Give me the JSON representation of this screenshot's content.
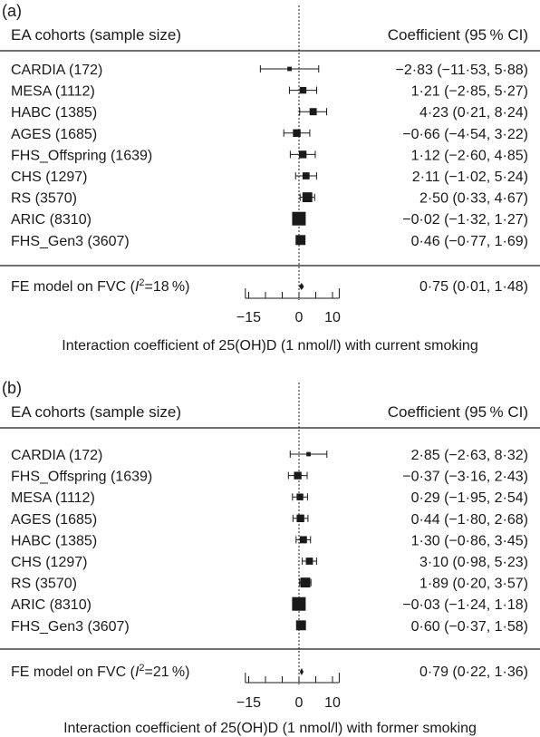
{
  "chart_data": [
    {
      "type": "forest",
      "panel": "(a)",
      "header_left": "EA cohorts (sample size)",
      "header_right": "Coefficient (95 % CI)",
      "rows": [
        {
          "label": "CARDIA (172)",
          "est": -2.83,
          "lo": -11.53,
          "hi": 5.88,
          "ci_text": "−2·83 (−11·53, 5·88)",
          "weight": 172
        },
        {
          "label": "MESA (1112)",
          "est": 1.21,
          "lo": -2.85,
          "hi": 5.27,
          "ci_text": "1·21 (−2·85, 5·27)",
          "weight": 1112
        },
        {
          "label": "HABC (1385)",
          "est": 4.23,
          "lo": 0.21,
          "hi": 8.24,
          "ci_text": "4·23 (0·21, 8·24)",
          "weight": 1385
        },
        {
          "label": "AGES (1685)",
          "est": -0.66,
          "lo": -4.54,
          "hi": 3.22,
          "ci_text": "−0·66 (−4·54, 3·22)",
          "weight": 1685
        },
        {
          "label": "FHS_Offspring (1639)",
          "est": 1.12,
          "lo": -2.6,
          "hi": 4.85,
          "ci_text": "1·12 (−2·60, 4·85)",
          "weight": 1639
        },
        {
          "label": "CHS (1297)",
          "est": 2.11,
          "lo": -1.02,
          "hi": 5.24,
          "ci_text": "2·11 (−1·02, 5·24)",
          "weight": 1297
        },
        {
          "label": "RS (3570)",
          "est": 2.5,
          "lo": 0.33,
          "hi": 4.67,
          "ci_text": "2·50 (0·33, 4·67)",
          "weight": 3570
        },
        {
          "label": "ARIC (8310)",
          "est": -0.02,
          "lo": -1.32,
          "hi": 1.27,
          "ci_text": "−0·02 (−1·32, 1·27)",
          "weight": 8310
        },
        {
          "label": "FHS_Gen3 (3607)",
          "est": 0.46,
          "lo": -0.77,
          "hi": 1.69,
          "ci_text": "0·46 (−0·77, 1·69)",
          "weight": 3607
        }
      ],
      "summary": {
        "label_prefix": "FE model on FVC (",
        "i2_symbol": "I",
        "i2_sup": "2",
        "i2_text": "=18 %)",
        "est": 0.75,
        "lo": 0.01,
        "hi": 1.48,
        "ci_text": "0·75 (0·01, 1·48)"
      },
      "x_ticks": [
        -15,
        0,
        10
      ],
      "x_tick_labels": [
        "−15",
        "0",
        "10"
      ],
      "xlim": [
        -16,
        12
      ],
      "xlabel": "Interaction coefficient of 25(OH)D  (1 nmol/l) with current smoking"
    },
    {
      "type": "forest",
      "panel": "(b)",
      "header_left": "EA cohorts (sample size)",
      "header_right": "Coefficient (95 % CI)",
      "rows": [
        {
          "label": "CARDIA (172)",
          "est": 2.85,
          "lo": -2.63,
          "hi": 8.32,
          "ci_text": "2·85 (−2·63, 8·32)",
          "weight": 172
        },
        {
          "label": "FHS_Offspring (1639)",
          "est": -0.37,
          "lo": -3.16,
          "hi": 2.43,
          "ci_text": "−0·37 (−3·16, 2·43)",
          "weight": 1639
        },
        {
          "label": "MESA (1112)",
          "est": 0.29,
          "lo": -1.95,
          "hi": 2.54,
          "ci_text": "0·29 (−1·95, 2·54)",
          "weight": 1112
        },
        {
          "label": "AGES (1685)",
          "est": 0.44,
          "lo": -1.8,
          "hi": 2.68,
          "ci_text": "0·44 (−1·80, 2·68)",
          "weight": 1685
        },
        {
          "label": "HABC (1385)",
          "est": 1.3,
          "lo": -0.86,
          "hi": 3.45,
          "ci_text": "1·30 (−0·86, 3·45)",
          "weight": 1385
        },
        {
          "label": "CHS (1297)",
          "est": 3.1,
          "lo": 0.98,
          "hi": 5.23,
          "ci_text": "3·10 (0·98, 5·23)",
          "weight": 1297
        },
        {
          "label": "RS (3570)",
          "est": 1.89,
          "lo": 0.2,
          "hi": 3.57,
          "ci_text": "1·89 (0·20, 3·57)",
          "weight": 3570
        },
        {
          "label": "ARIC (8310)",
          "est": -0.03,
          "lo": -1.24,
          "hi": 1.18,
          "ci_text": "−0·03 (−1·24, 1·18)",
          "weight": 8310
        },
        {
          "label": "FHS_Gen3 (3607)",
          "est": 0.6,
          "lo": -0.37,
          "hi": 1.58,
          "ci_text": "0·60 (−0·37, 1·58)",
          "weight": 3607
        }
      ],
      "summary": {
        "label_prefix": "FE model on FVC (",
        "i2_symbol": "I",
        "i2_sup": "2",
        "i2_text": "=21 %)",
        "est": 0.79,
        "lo": 0.22,
        "hi": 1.36,
        "ci_text": "0·79 (0·22, 1·36)"
      },
      "x_ticks": [
        -15,
        0,
        10
      ],
      "x_tick_labels": [
        "−15",
        "0",
        "10"
      ],
      "xlim": [
        -16,
        12
      ],
      "xlabel": "Interaction coefficient of 25(OH)D  (1 nmol/l) with former smoking"
    }
  ]
}
